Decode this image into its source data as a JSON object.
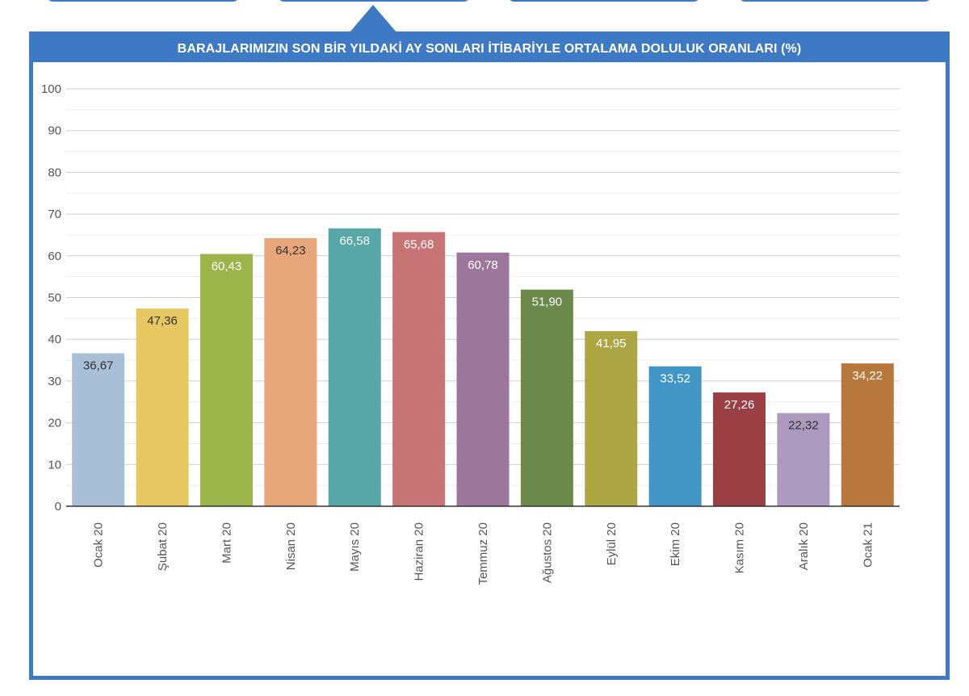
{
  "tabs": [
    {
      "id": "tab-1"
    },
    {
      "id": "tab-2",
      "active": true
    },
    {
      "id": "tab-3"
    },
    {
      "id": "tab-4"
    }
  ],
  "colors": {
    "frame": "#3e79c6",
    "header_text": "#ffffff",
    "grid": "#cfcfcf",
    "minor_grid": "#ececec",
    "axis": "#333333",
    "tick_text": "#555555"
  },
  "chart_data": {
    "type": "bar",
    "title": "BARAJLARIMIZIN SON BİR YILDAKİ AY SONLARI İTİBARİYLE ORTALAMA DOLULUK ORANLARI (%)",
    "xlabel": "",
    "ylabel": "",
    "ylim": [
      0,
      100
    ],
    "y_ticks": [
      0,
      10,
      20,
      30,
      40,
      50,
      60,
      70,
      80,
      90,
      100
    ],
    "grid": true,
    "legend": "none",
    "categories": [
      "Ocak 20",
      "Şubat 20",
      "Mart 20",
      "Nisan 20",
      "Mayıs 20",
      "Haziran 20",
      "Temmuz 20",
      "Ağustos 20",
      "Eylül 20",
      "Ekim 20",
      "Kasım 20",
      "Aralık 20",
      "Ocak 21"
    ],
    "values": [
      36.67,
      47.36,
      60.43,
      64.23,
      66.58,
      65.68,
      60.78,
      51.9,
      41.95,
      33.52,
      27.26,
      22.32,
      34.22
    ],
    "labels": [
      "36,67",
      "47,36",
      "60,43",
      "64,23",
      "66,58",
      "65,68",
      "60,78",
      "51,90",
      "41,95",
      "33,52",
      "27,26",
      "22,32",
      "34,22"
    ],
    "bar_colors": [
      "#a7c0d6",
      "#e7c762",
      "#9bb54b",
      "#e7a67a",
      "#56a7a6",
      "#c97474",
      "#9d769c",
      "#6c894c",
      "#aca645",
      "#4296c6",
      "#9a4044",
      "#ab9abd",
      "#b8783b"
    ],
    "label_colors": [
      "#333333",
      "#333333",
      "#ffffff",
      "#333333",
      "#ffffff",
      "#ffffff",
      "#ffffff",
      "#ffffff",
      "#ffffff",
      "#ffffff",
      "#ffffff",
      "#333333",
      "#ffffff"
    ]
  }
}
